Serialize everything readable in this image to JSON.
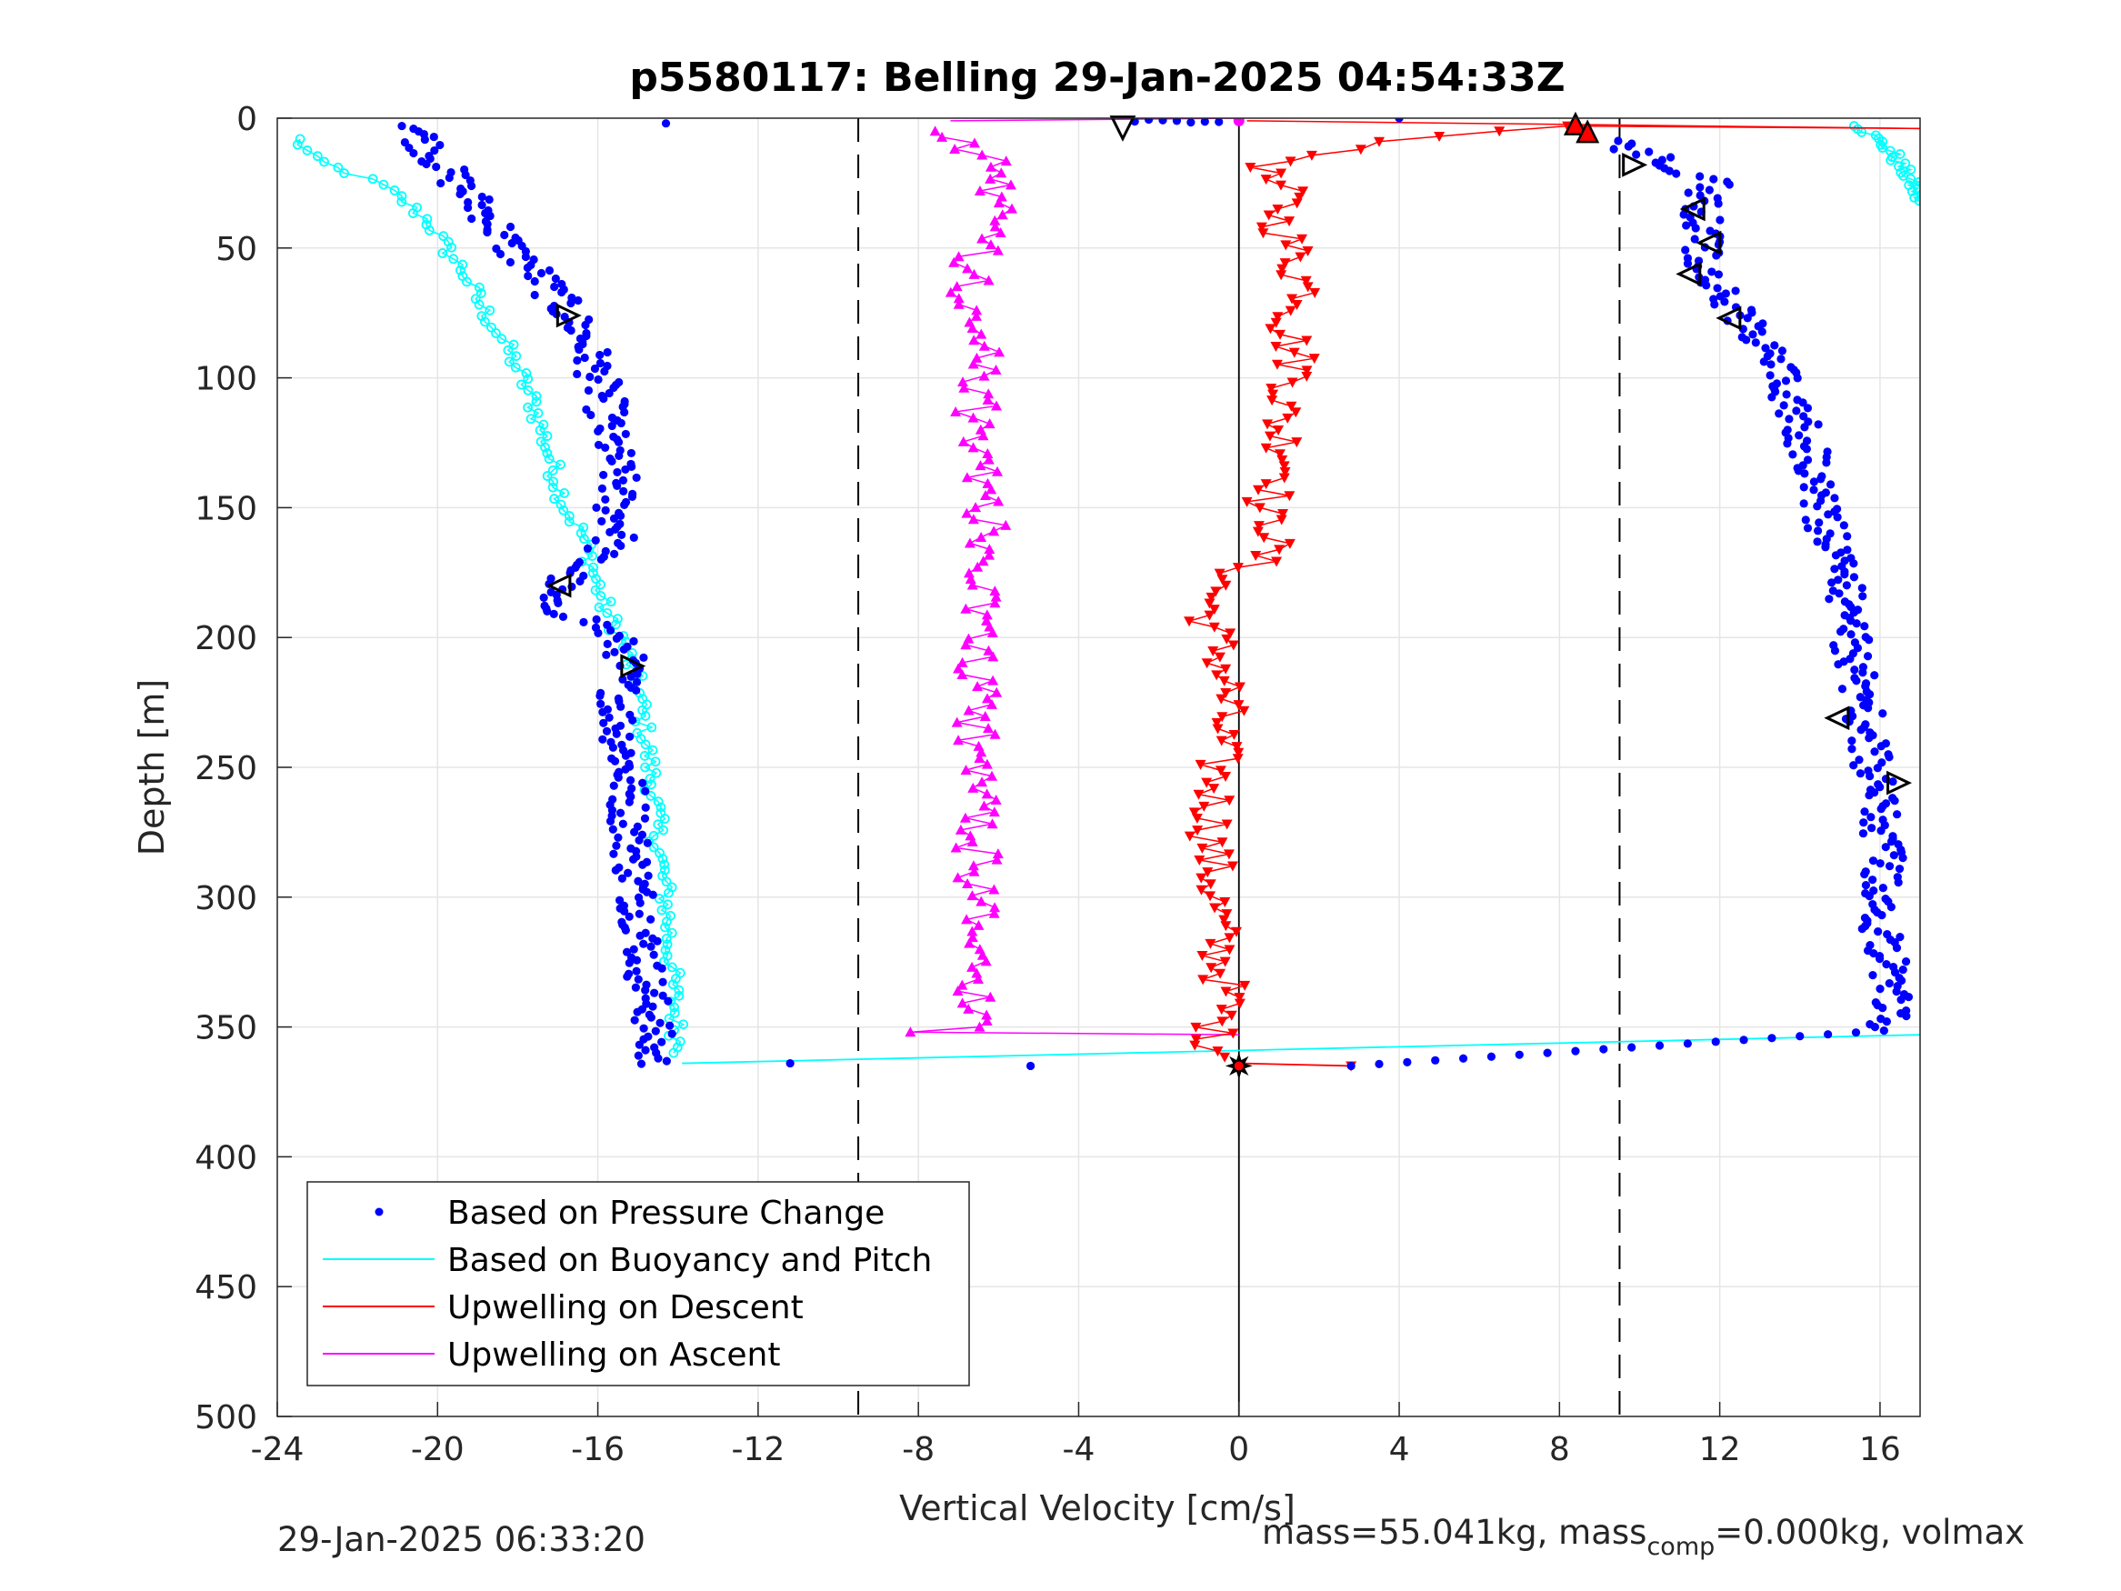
{
  "chart_data": {
    "type": "scatter",
    "title": "p5580117: Belling 29-Jan-2025 04:54:33Z",
    "xlabel": "Vertical Velocity [cm/s]",
    "ylabel": "Depth [m]",
    "xlim": [
      -24,
      17
    ],
    "ylim": [
      0,
      500
    ],
    "y_reversed": true,
    "grid": true,
    "xticks": [
      -24,
      -20,
      -16,
      -12,
      -8,
      -4,
      0,
      4,
      8,
      12,
      16
    ],
    "yticks": [
      0,
      50,
      100,
      150,
      200,
      250,
      300,
      350,
      400,
      450,
      500
    ],
    "xtick_labels": [
      "-24",
      "-20",
      "-16",
      "-12",
      "-8",
      "-4",
      "0",
      "4",
      "8",
      "12",
      "16"
    ],
    "ytick_labels": [
      "0",
      "50",
      "100",
      "150",
      "200",
      "250",
      "300",
      "350",
      "400",
      "450",
      "500"
    ],
    "legend_position": "bottom-left",
    "reference_lines": {
      "dashed_x": [
        -9.5,
        9.5
      ],
      "solid_x": 0
    },
    "series": [
      {
        "name": "Based on Pressure Change",
        "style": "dots",
        "color": "#0000ff",
        "descent": {
          "depth": [
            3,
            10,
            20,
            30,
            40,
            50,
            60,
            70,
            80,
            90,
            100,
            110,
            120,
            130,
            140,
            150,
            160,
            170,
            180,
            186,
            195,
            205,
            215,
            230,
            250,
            270,
            290,
            310,
            330,
            350,
            360,
            365
          ],
          "velocity": [
            -20.5,
            -20.3,
            -19.8,
            -19.2,
            -18.6,
            -18.2,
            -17.5,
            -17.0,
            -16.5,
            -16.2,
            -16.0,
            -15.8,
            -15.8,
            -15.6,
            -15.5,
            -15.6,
            -15.4,
            -16.2,
            -17.0,
            -17.5,
            -16.0,
            -15.3,
            -15.4,
            -15.5,
            -15.3,
            -15.2,
            -15.1,
            -14.9,
            -14.8,
            -14.6,
            -14.7,
            -14.6
          ]
        },
        "ascent": {
          "depth": [
            350,
            330,
            310,
            290,
            270,
            250,
            230,
            210,
            190,
            170,
            150,
            130,
            110,
            90,
            75,
            60,
            45,
            35,
            25,
            15,
            8
          ],
          "velocity": [
            16.2,
            16.3,
            16.0,
            16.1,
            16.0,
            15.8,
            15.6,
            15.4,
            15.2,
            15.0,
            14.5,
            14.3,
            13.8,
            13.2,
            12.5,
            11.5,
            11.6,
            11.5,
            11.8,
            10.5,
            9.0
          ]
        },
        "outliers": [
          {
            "velocity": -14.3,
            "depth": 2
          },
          {
            "velocity": 4.0,
            "depth": 0
          },
          {
            "velocity": -11.2,
            "depth": 364
          },
          {
            "velocity": -5.2,
            "depth": 365
          }
        ]
      },
      {
        "name": "Based on Buoyancy and Pitch",
        "style": "line-with-circles",
        "color": "#00ffff",
        "descent": {
          "depth": [
            8,
            15,
            20,
            25,
            30,
            40,
            50,
            60,
            70,
            80,
            90,
            100,
            110,
            120,
            130,
            140,
            150,
            160,
            170,
            180,
            190,
            200,
            210,
            220,
            240,
            260,
            280,
            300,
            320,
            340,
            355,
            362
          ],
          "velocity": [
            -23.5,
            -23.2,
            -22.4,
            -21.5,
            -21.0,
            -20.2,
            -19.8,
            -19.3,
            -19.0,
            -18.6,
            -18.2,
            -17.9,
            -17.6,
            -17.4,
            -17.2,
            -17.0,
            -16.8,
            -16.4,
            -16.2,
            -16.0,
            -15.8,
            -15.4,
            -15.2,
            -15.0,
            -14.8,
            -14.6,
            -14.5,
            -14.3,
            -14.2,
            -14.1,
            -14.0,
            -13.9
          ]
        },
        "ascent": {
          "depth": [
            3,
            8,
            13,
            18,
            25,
            33
          ],
          "velocity": [
            15.5,
            15.9,
            16.3,
            16.5,
            16.8,
            17.0
          ]
        },
        "turn_line": {
          "velocity": [
            -13.9,
            17.0
          ],
          "depth": [
            364,
            353
          ]
        }
      },
      {
        "name": "Upwelling on Descent",
        "style": "line-with-down-triangles",
        "color": "#ff0000",
        "depth": [
          3,
          10,
          20,
          30,
          40,
          50,
          60,
          70,
          80,
          90,
          100,
          110,
          120,
          130,
          140,
          150,
          160,
          170,
          180,
          190,
          200,
          210,
          220,
          240,
          260,
          280,
          300,
          320,
          340,
          355,
          362
        ],
        "velocity": [
          8.2,
          3.0,
          0.5,
          1.2,
          1.0,
          1.3,
          1.5,
          1.8,
          1.2,
          1.4,
          1.5,
          1.1,
          1.0,
          1.3,
          1.2,
          0.5,
          1.0,
          0.5,
          -0.5,
          -0.8,
          -0.6,
          -0.4,
          -0.3,
          -0.5,
          -0.6,
          -0.7,
          -0.6,
          -0.5,
          -0.3,
          -0.7,
          -0.2
        ]
      },
      {
        "name": "Upwelling on Ascent",
        "style": "line-with-up-triangles",
        "color": "#ff00ff",
        "depth": [
          350,
          330,
          310,
          290,
          270,
          250,
          230,
          210,
          190,
          170,
          150,
          130,
          110,
          90,
          75,
          60,
          45,
          35,
          25,
          15,
          5
        ],
        "velocity": [
          -6.5,
          -6.5,
          -6.6,
          -6.5,
          -6.6,
          -6.6,
          -6.5,
          -6.6,
          -6.5,
          -6.2,
          -6.3,
          -6.4,
          -6.6,
          -6.5,
          -6.8,
          -6.6,
          -6.5,
          -6.2,
          -6.0,
          -6.3,
          -7.2
        ]
      }
    ],
    "markers": {
      "right_triangles": [
        {
          "velocity": -16.8,
          "depth": 76
        },
        {
          "velocity": -15.2,
          "depth": 211
        },
        {
          "velocity": 16.4,
          "depth": 256
        },
        {
          "velocity": 9.8,
          "depth": 18
        }
      ],
      "left_triangles": [
        {
          "velocity": -16.9,
          "depth": 180
        },
        {
          "velocity": 15.0,
          "depth": 231
        },
        {
          "velocity": 11.4,
          "depth": 35
        },
        {
          "velocity": 11.8,
          "depth": 48
        },
        {
          "velocity": 11.3,
          "depth": 60
        },
        {
          "velocity": 12.3,
          "depth": 77
        }
      ],
      "down_triangles": [
        {
          "velocity": -2.9,
          "depth": 3
        }
      ],
      "up_triangles_red": [
        {
          "velocity": 8.4,
          "depth": 3
        },
        {
          "velocity": 8.7,
          "depth": 6
        }
      ],
      "turn_point": {
        "velocity": 0,
        "depth": 365
      }
    }
  },
  "legend": {
    "item_pressure": "Based on Pressure Change",
    "item_buoyancy": "Based on Buoyancy and Pitch",
    "item_descent": "Upwelling on Descent",
    "item_ascent": "Upwelling on Ascent"
  },
  "footer": {
    "timestamp": "29-Jan-2025 06:33:20",
    "mass_prefix": "mass=55.041kg, mass",
    "mass_sub": "comp",
    "mass_suffix": "=0.000kg, volmax"
  },
  "colors": {
    "pressure": "#0000ff",
    "buoyancy": "#00ffff",
    "descent": "#ff0000",
    "ascent": "#ff00ff",
    "axis": "#262626",
    "grid": "#e5e5e5"
  }
}
